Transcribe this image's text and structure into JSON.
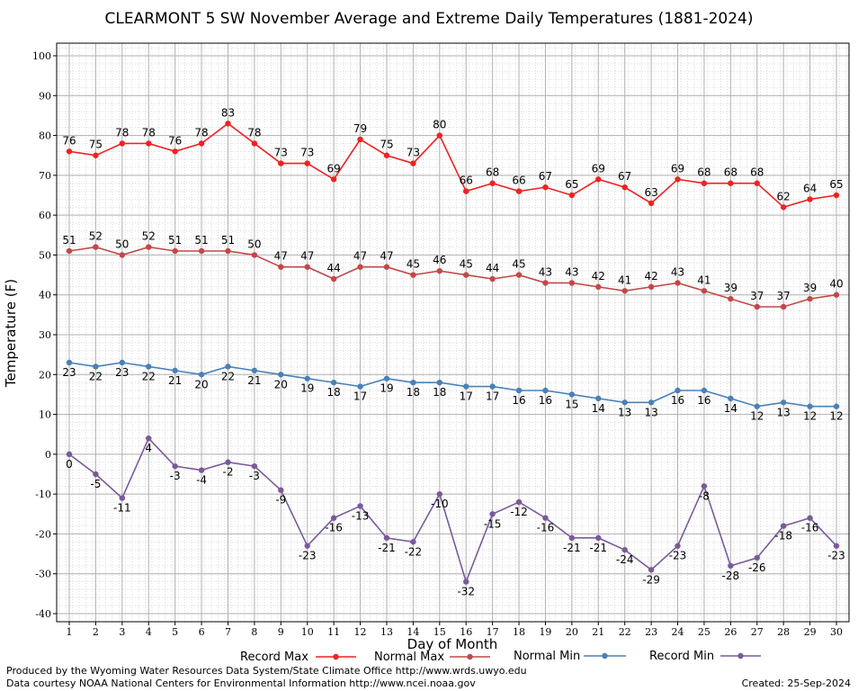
{
  "chart_data": {
    "type": "line",
    "title": "CLEARMONT 5 SW November Average and Extreme Daily Temperatures (1881-2024)",
    "xlabel": "Day of Month",
    "ylabel": "Temperature (F)",
    "ylim": [
      -40,
      100
    ],
    "y_ticks": [
      -40,
      -30,
      -20,
      -10,
      0,
      10,
      20,
      30,
      40,
      50,
      60,
      70,
      80,
      90,
      100
    ],
    "x": [
      1,
      2,
      3,
      4,
      5,
      6,
      7,
      8,
      9,
      10,
      11,
      12,
      13,
      14,
      15,
      16,
      17,
      18,
      19,
      20,
      21,
      22,
      23,
      24,
      25,
      26,
      27,
      28,
      29,
      30
    ],
    "grid": true,
    "legend_position": "bottom",
    "series": [
      {
        "name": "Record Max",
        "color": "#ee2222",
        "values": [
          76,
          75,
          78,
          78,
          76,
          78,
          83,
          78,
          73,
          73,
          69,
          79,
          75,
          73,
          80,
          66,
          68,
          66,
          67,
          65,
          69,
          67,
          63,
          69,
          68,
          68,
          68,
          62,
          64,
          65
        ]
      },
      {
        "name": "Normal Max",
        "color": "#c24848",
        "values": [
          51,
          52,
          50,
          52,
          51,
          51,
          51,
          50,
          47,
          47,
          44,
          47,
          47,
          45,
          46,
          45,
          44,
          45,
          43,
          43,
          42,
          41,
          42,
          43,
          41,
          39,
          37,
          37,
          39,
          40
        ]
      },
      {
        "name": "Normal Min",
        "color": "#4a80b8",
        "values": [
          23,
          22,
          23,
          22,
          21,
          20,
          22,
          21,
          20,
          19,
          18,
          17,
          19,
          18,
          18,
          17,
          17,
          16,
          16,
          15,
          14,
          13,
          13,
          16,
          16,
          14,
          12,
          13,
          12,
          12
        ]
      },
      {
        "name": "Record Min",
        "color": "#7a5a9a",
        "values": [
          0,
          -5,
          -11,
          4,
          -3,
          -4,
          -2,
          -3,
          -9,
          -23,
          -16,
          -13,
          -21,
          -22,
          -10,
          -32,
          -15,
          -12,
          -16,
          -21,
          -21,
          -24,
          -29,
          -23,
          -8,
          -28,
          -26,
          -18,
          -16,
          -23
        ]
      }
    ]
  },
  "footer": {
    "producer": "Produced by the Wyoming Water Resources Data System/State Climate Office http://www.wrds.uwyo.edu",
    "data_source": "Data courtesy NOAA National Centers for Environmental Information http://www.ncei.noaa.gov",
    "created": "Created:  25-Sep-2024"
  }
}
